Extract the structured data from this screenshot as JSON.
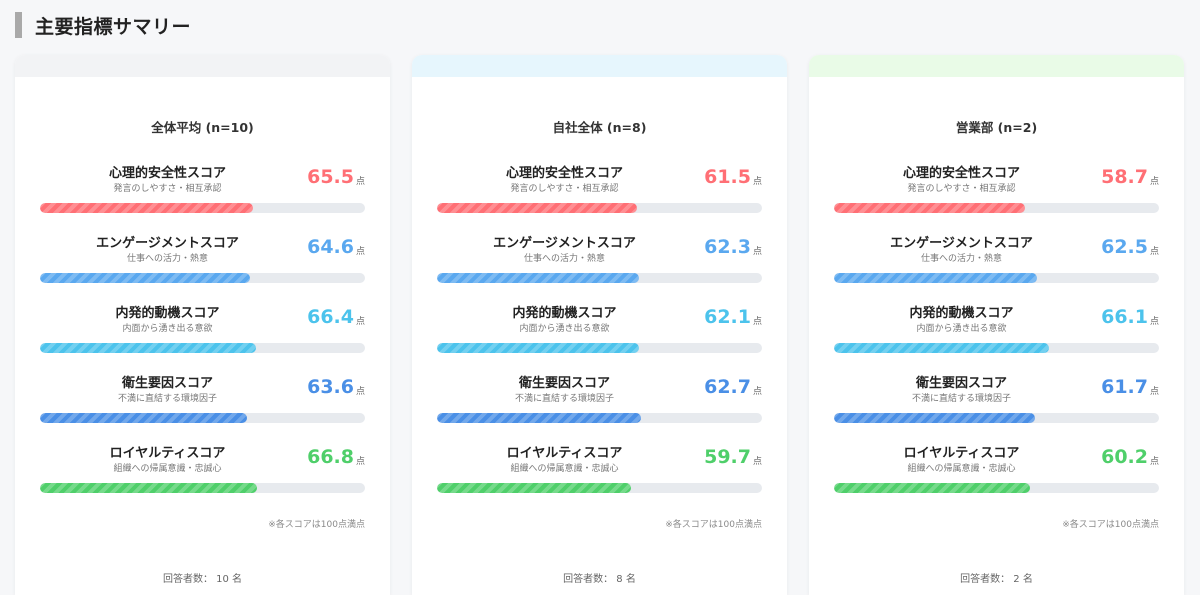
{
  "header": {
    "title": "主要指標サマリー"
  },
  "score_unit": "点",
  "colors": {
    "psych": "#ff6f75",
    "engagement": "#5aa8ef",
    "intrinsic": "#4cc3ec",
    "hygiene": "#4a8fe6",
    "loyalty": "#4fcf6a"
  },
  "metrics": [
    {
      "key": "psych",
      "label": "心理的安全性スコア",
      "sub": "発言のしやすさ・相互承認"
    },
    {
      "key": "engagement",
      "label": "エンゲージメントスコア",
      "sub": "仕事への活力・熱意"
    },
    {
      "key": "intrinsic",
      "label": "内発的動機スコア",
      "sub": "内面から湧き出る意欲"
    },
    {
      "key": "hygiene",
      "label": "衛生要因スコア",
      "sub": "不満に直結する環境因子"
    },
    {
      "key": "loyalty",
      "label": "ロイヤルティスコア",
      "sub": "組織への帰属意識・忠誠心"
    }
  ],
  "cards": [
    {
      "title": "全体平均 (n=10)",
      "top_color": "#f2f3f5",
      "scores": [
        "65.5",
        "64.6",
        "66.4",
        "63.6",
        "66.8"
      ],
      "note": "※各スコアは100点満点",
      "respondents": "回答者数： 10 名"
    },
    {
      "title": "自社全体 (n=8)",
      "top_color": "#e6f6fd",
      "scores": [
        "61.5",
        "62.3",
        "62.1",
        "62.7",
        "59.7"
      ],
      "note": "※各スコアは100点満点",
      "respondents": "回答者数： 8 名"
    },
    {
      "title": "営業部 (n=2)",
      "top_color": "#e9fbe7",
      "scores": [
        "58.7",
        "62.5",
        "66.1",
        "61.7",
        "60.2"
      ],
      "note": "※各スコアは100点満点",
      "respondents": "回答者数： 2 名"
    }
  ]
}
